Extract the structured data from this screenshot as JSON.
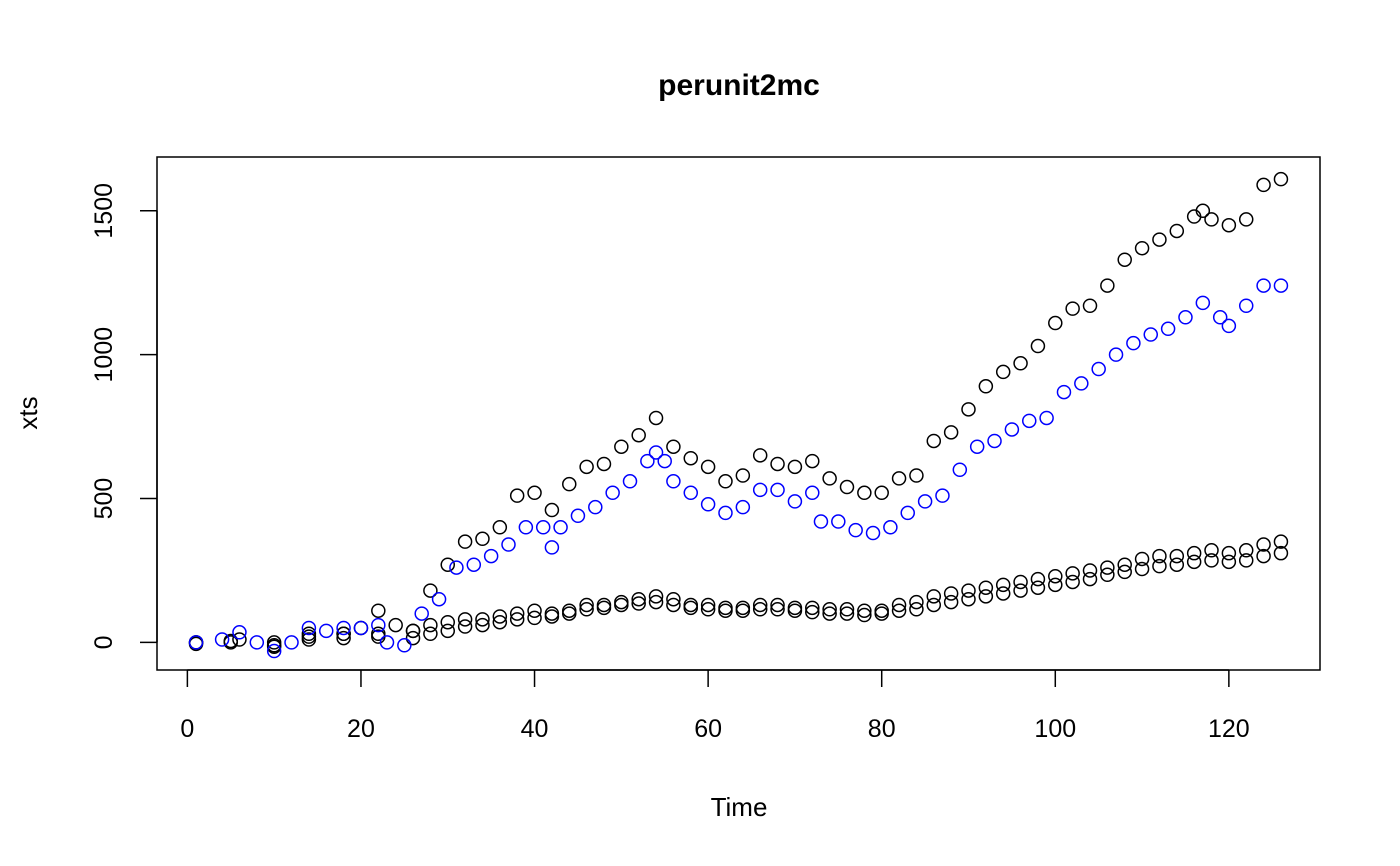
{
  "chart_data": {
    "type": "scatter",
    "title": "perunit2mc",
    "xlabel": "Time",
    "ylabel": "xts",
    "xlim": [
      -3.5,
      130.5
    ],
    "ylim": [
      -96,
      1687
    ],
    "xticks": [
      0,
      20,
      40,
      60,
      80,
      100,
      120
    ],
    "yticks": [
      0,
      500,
      1000,
      1500
    ],
    "grid": false,
    "legend": "none",
    "marker": "open-circle",
    "series": [
      {
        "color": "#000000",
        "points": [
          [
            1,
            0
          ],
          [
            6,
            10
          ],
          [
            10,
            -10
          ],
          [
            14,
            30
          ],
          [
            18,
            30
          ],
          [
            20,
            50
          ],
          [
            22,
            110
          ],
          [
            24,
            60
          ],
          [
            26,
            40
          ],
          [
            28,
            180
          ],
          [
            30,
            270
          ],
          [
            32,
            350
          ],
          [
            34,
            360
          ],
          [
            36,
            400
          ],
          [
            38,
            510
          ],
          [
            40,
            520
          ],
          [
            42,
            460
          ],
          [
            44,
            550
          ],
          [
            46,
            610
          ],
          [
            48,
            620
          ],
          [
            50,
            680
          ],
          [
            52,
            720
          ],
          [
            54,
            780
          ],
          [
            56,
            680
          ],
          [
            58,
            640
          ],
          [
            60,
            610
          ],
          [
            62,
            560
          ],
          [
            64,
            580
          ],
          [
            66,
            650
          ],
          [
            68,
            620
          ],
          [
            70,
            610
          ],
          [
            72,
            630
          ],
          [
            74,
            570
          ],
          [
            76,
            540
          ],
          [
            78,
            520
          ],
          [
            80,
            520
          ],
          [
            82,
            570
          ],
          [
            84,
            580
          ],
          [
            86,
            700
          ],
          [
            88,
            730
          ],
          [
            90,
            810
          ],
          [
            92,
            890
          ],
          [
            94,
            940
          ],
          [
            96,
            970
          ],
          [
            98,
            1030
          ],
          [
            100,
            1110
          ],
          [
            102,
            1160
          ],
          [
            104,
            1170
          ],
          [
            106,
            1240
          ],
          [
            108,
            1330
          ],
          [
            110,
            1370
          ],
          [
            112,
            1400
          ],
          [
            114,
            1430
          ],
          [
            116,
            1480
          ],
          [
            117,
            1500
          ],
          [
            118,
            1470
          ],
          [
            120,
            1450
          ],
          [
            122,
            1470
          ],
          [
            124,
            1590
          ],
          [
            126,
            1610
          ]
        ]
      },
      {
        "color": "#000000",
        "points": [
          [
            1,
            0
          ],
          [
            5,
            5
          ],
          [
            10,
            0
          ],
          [
            14,
            20
          ],
          [
            18,
            30
          ],
          [
            22,
            30
          ],
          [
            26,
            40
          ],
          [
            28,
            60
          ],
          [
            30,
            70
          ],
          [
            32,
            80
          ],
          [
            34,
            80
          ],
          [
            36,
            90
          ],
          [
            38,
            100
          ],
          [
            40,
            110
          ],
          [
            42,
            100
          ],
          [
            44,
            110
          ],
          [
            46,
            130
          ],
          [
            48,
            130
          ],
          [
            50,
            140
          ],
          [
            52,
            150
          ],
          [
            54,
            160
          ],
          [
            56,
            150
          ],
          [
            58,
            130
          ],
          [
            60,
            130
          ],
          [
            62,
            120
          ],
          [
            64,
            120
          ],
          [
            66,
            130
          ],
          [
            68,
            130
          ],
          [
            70,
            120
          ],
          [
            72,
            120
          ],
          [
            74,
            115
          ],
          [
            76,
            115
          ],
          [
            78,
            110
          ],
          [
            80,
            110
          ],
          [
            82,
            130
          ],
          [
            84,
            140
          ],
          [
            86,
            160
          ],
          [
            88,
            170
          ],
          [
            90,
            180
          ],
          [
            92,
            190
          ],
          [
            94,
            200
          ],
          [
            96,
            210
          ],
          [
            98,
            220
          ],
          [
            100,
            230
          ],
          [
            102,
            240
          ],
          [
            104,
            250
          ],
          [
            106,
            260
          ],
          [
            108,
            270
          ],
          [
            110,
            290
          ],
          [
            112,
            300
          ],
          [
            114,
            300
          ],
          [
            116,
            310
          ],
          [
            118,
            320
          ],
          [
            120,
            310
          ],
          [
            122,
            320
          ],
          [
            124,
            340
          ],
          [
            126,
            350
          ]
        ]
      },
      {
        "color": "#000000",
        "points": [
          [
            1,
            -5
          ],
          [
            5,
            0
          ],
          [
            10,
            -15
          ],
          [
            14,
            10
          ],
          [
            18,
            15
          ],
          [
            22,
            20
          ],
          [
            26,
            15
          ],
          [
            28,
            30
          ],
          [
            30,
            40
          ],
          [
            32,
            55
          ],
          [
            34,
            60
          ],
          [
            36,
            70
          ],
          [
            38,
            80
          ],
          [
            40,
            85
          ],
          [
            42,
            90
          ],
          [
            44,
            100
          ],
          [
            46,
            115
          ],
          [
            48,
            120
          ],
          [
            50,
            130
          ],
          [
            52,
            135
          ],
          [
            54,
            140
          ],
          [
            56,
            130
          ],
          [
            58,
            120
          ],
          [
            60,
            115
          ],
          [
            62,
            110
          ],
          [
            64,
            110
          ],
          [
            66,
            115
          ],
          [
            68,
            115
          ],
          [
            70,
            110
          ],
          [
            72,
            105
          ],
          [
            74,
            100
          ],
          [
            76,
            100
          ],
          [
            78,
            95
          ],
          [
            80,
            100
          ],
          [
            82,
            110
          ],
          [
            84,
            115
          ],
          [
            86,
            130
          ],
          [
            88,
            140
          ],
          [
            90,
            150
          ],
          [
            92,
            160
          ],
          [
            94,
            170
          ],
          [
            96,
            180
          ],
          [
            98,
            190
          ],
          [
            100,
            200
          ],
          [
            102,
            210
          ],
          [
            104,
            220
          ],
          [
            106,
            235
          ],
          [
            108,
            245
          ],
          [
            110,
            255
          ],
          [
            112,
            265
          ],
          [
            114,
            270
          ],
          [
            116,
            280
          ],
          [
            118,
            285
          ],
          [
            120,
            280
          ],
          [
            122,
            285
          ],
          [
            124,
            300
          ],
          [
            126,
            310
          ]
        ]
      },
      {
        "color": "#0000ff",
        "points": [
          [
            1,
            0
          ],
          [
            4,
            10
          ],
          [
            6,
            35
          ],
          [
            8,
            0
          ],
          [
            10,
            -30
          ],
          [
            12,
            0
          ],
          [
            14,
            50
          ],
          [
            16,
            40
          ],
          [
            18,
            50
          ],
          [
            20,
            50
          ],
          [
            22,
            60
          ],
          [
            23,
            0
          ],
          [
            25,
            -10
          ],
          [
            27,
            100
          ],
          [
            29,
            150
          ],
          [
            31,
            260
          ],
          [
            33,
            270
          ],
          [
            35,
            300
          ],
          [
            37,
            340
          ],
          [
            39,
            400
          ],
          [
            41,
            400
          ],
          [
            42,
            330
          ],
          [
            43,
            400
          ],
          [
            45,
            440
          ],
          [
            47,
            470
          ],
          [
            49,
            520
          ],
          [
            51,
            560
          ],
          [
            53,
            630
          ],
          [
            54,
            660
          ],
          [
            55,
            630
          ],
          [
            56,
            560
          ],
          [
            58,
            520
          ],
          [
            60,
            480
          ],
          [
            62,
            450
          ],
          [
            64,
            470
          ],
          [
            66,
            530
          ],
          [
            68,
            530
          ],
          [
            70,
            490
          ],
          [
            72,
            520
          ],
          [
            73,
            420
          ],
          [
            75,
            420
          ],
          [
            77,
            390
          ],
          [
            79,
            380
          ],
          [
            81,
            400
          ],
          [
            83,
            450
          ],
          [
            85,
            490
          ],
          [
            87,
            510
          ],
          [
            89,
            600
          ],
          [
            91,
            680
          ],
          [
            93,
            700
          ],
          [
            95,
            740
          ],
          [
            97,
            770
          ],
          [
            99,
            780
          ],
          [
            101,
            870
          ],
          [
            103,
            900
          ],
          [
            105,
            950
          ],
          [
            107,
            1000
          ],
          [
            109,
            1040
          ],
          [
            111,
            1070
          ],
          [
            113,
            1090
          ],
          [
            115,
            1130
          ],
          [
            117,
            1180
          ],
          [
            119,
            1130
          ],
          [
            120,
            1100
          ],
          [
            122,
            1170
          ],
          [
            124,
            1240
          ],
          [
            126,
            1240
          ]
        ]
      }
    ]
  }
}
